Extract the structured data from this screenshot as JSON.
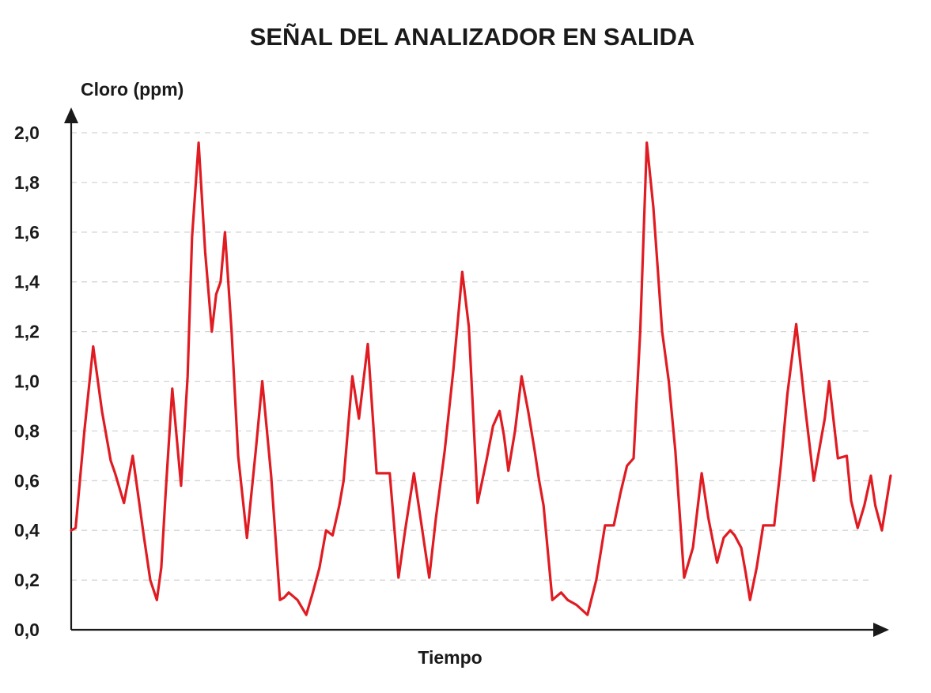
{
  "chart_data": {
    "type": "line",
    "title": "SEÑAL DEL ANALIZADOR EN SALIDA",
    "ylabel": "Cloro (ppm)",
    "xlabel": "Tiempo",
    "ylim": [
      0,
      2.0
    ],
    "yticks": [
      "0,0",
      "0,2",
      "0,4",
      "0,6",
      "0,8",
      "1,0",
      "1,2",
      "1,4",
      "1,6",
      "1,8",
      "2,0"
    ],
    "grid": true,
    "line_color": "#e01b22",
    "series": [
      {
        "x": [
          0,
          2,
          6,
          10,
          14,
          18,
          20,
          24,
          28,
          33,
          36,
          39,
          41,
          43,
          46,
          50,
          53,
          55,
          58,
          61,
          64,
          66,
          68,
          70,
          73,
          76,
          80,
          84,
          87,
          91,
          95,
          97,
          99,
          103,
          107,
          110,
          113,
          116,
          119,
          122,
          124,
          128,
          131,
          135,
          139,
          142,
          145,
          149,
          152,
          156,
          159,
          163,
          166,
          170,
          174,
          178,
          181,
          185,
          189,
          192,
          195,
          197,
          199,
          202,
          205,
          208,
          211,
          213,
          215,
          219,
          223,
          226,
          230,
          235,
          239,
          243,
          247,
          250,
          253,
          256,
          259,
          262,
          265,
          267,
          269,
          272,
          275,
          279,
          283,
          287,
          290,
          294,
          297,
          300,
          302,
          305,
          307,
          309,
          312,
          315,
          320,
          323,
          326,
          330,
          334,
          338,
          341,
          343,
          345,
          349,
          353,
          355,
          358,
          361,
          364,
          366,
          369,
          373
        ],
        "y": [
          0.4,
          0.41,
          0.8,
          1.14,
          0.88,
          0.68,
          0.63,
          0.51,
          0.7,
          0.38,
          0.2,
          0.12,
          0.25,
          0.55,
          0.97,
          0.58,
          1.02,
          1.58,
          1.96,
          1.52,
          1.2,
          1.35,
          1.4,
          1.6,
          1.2,
          0.7,
          0.37,
          0.72,
          1.0,
          0.62,
          0.12,
          0.13,
          0.15,
          0.12,
          0.06,
          0.15,
          0.25,
          0.4,
          0.38,
          0.5,
          0.6,
          1.02,
          0.85,
          1.15,
          0.63,
          0.63,
          0.63,
          0.21,
          0.4,
          0.63,
          0.45,
          0.21,
          0.45,
          0.72,
          1.05,
          1.44,
          1.22,
          0.51,
          0.68,
          0.82,
          0.88,
          0.78,
          0.64,
          0.8,
          1.02,
          0.88,
          0.72,
          0.6,
          0.5,
          0.12,
          0.15,
          0.12,
          0.1,
          0.06,
          0.2,
          0.42,
          0.42,
          0.55,
          0.66,
          0.69,
          1.2,
          1.96,
          1.7,
          1.45,
          1.2,
          1.0,
          0.72,
          0.21,
          0.33,
          0.63,
          0.45,
          0.27,
          0.37,
          0.4,
          0.38,
          0.33,
          0.23,
          0.12,
          0.25,
          0.42,
          0.42,
          0.66,
          0.95,
          1.23,
          0.9,
          0.6,
          0.75,
          0.85,
          1.0,
          0.69,
          0.7,
          0.52,
          0.41,
          0.5,
          0.62,
          0.5,
          0.4,
          0.62
        ]
      }
    ]
  }
}
